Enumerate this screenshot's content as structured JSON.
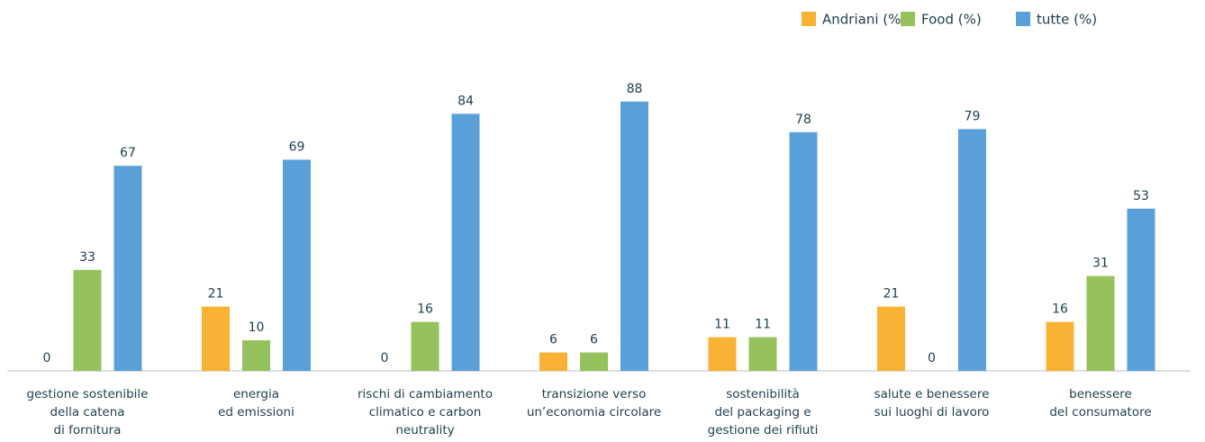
{
  "chart_data": {
    "type": "bar",
    "categories": [
      [
        "gestione sostenibile",
        "della catena",
        "di fornitura"
      ],
      [
        "energia",
        "ed emissioni"
      ],
      [
        "rischi di cambiamento",
        "climatico e carbon",
        "neutrality"
      ],
      [
        "transizione verso",
        "un’economia circolare"
      ],
      [
        "sostenibilità",
        "del packaging e",
        "gestione dei rifiuti"
      ],
      [
        "salute e benessere",
        "sui luoghi di lavoro"
      ],
      [
        "benessere",
        "del consumatore"
      ]
    ],
    "series": [
      {
        "name": "Andriani (%)",
        "color": "#f9b233",
        "values": [
          0,
          21,
          0,
          6,
          11,
          21,
          16
        ]
      },
      {
        "name": "Food (%)",
        "color": "#95c25c",
        "values": [
          33,
          10,
          16,
          6,
          11,
          0,
          31
        ]
      },
      {
        "name": "tutte (%)",
        "color": "#5aa0d8",
        "values": [
          67,
          69,
          84,
          88,
          78,
          79,
          53
        ]
      }
    ],
    "ylim": [
      0,
      90
    ],
    "legend": "top-right"
  }
}
